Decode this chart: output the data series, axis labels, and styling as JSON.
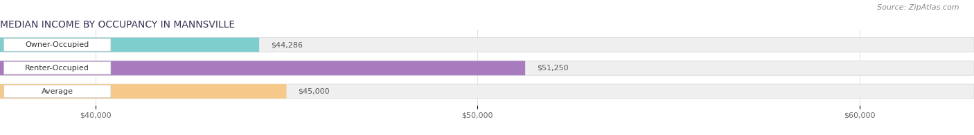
{
  "title": "MEDIAN INCOME BY OCCUPANCY IN MANNSVILLE",
  "source": "Source: ZipAtlas.com",
  "categories": [
    "Owner-Occupied",
    "Renter-Occupied",
    "Average"
  ],
  "values": [
    44286,
    51250,
    45000
  ],
  "labels": [
    "$44,286",
    "$51,250",
    "$45,000"
  ],
  "bar_colors": [
    "#7ecece",
    "#a87bbf",
    "#f5c98a"
  ],
  "bg_bar_color": "#efefef",
  "bg_bar_edge": "#e0e0e0",
  "xlim_min": 37500,
  "xlim_max": 63000,
  "xticks": [
    40000,
    50000,
    60000
  ],
  "xtick_labels": [
    "$40,000",
    "$50,000",
    "$60,000"
  ],
  "title_fontsize": 10,
  "label_fontsize": 8,
  "tick_fontsize": 8,
  "source_fontsize": 8
}
